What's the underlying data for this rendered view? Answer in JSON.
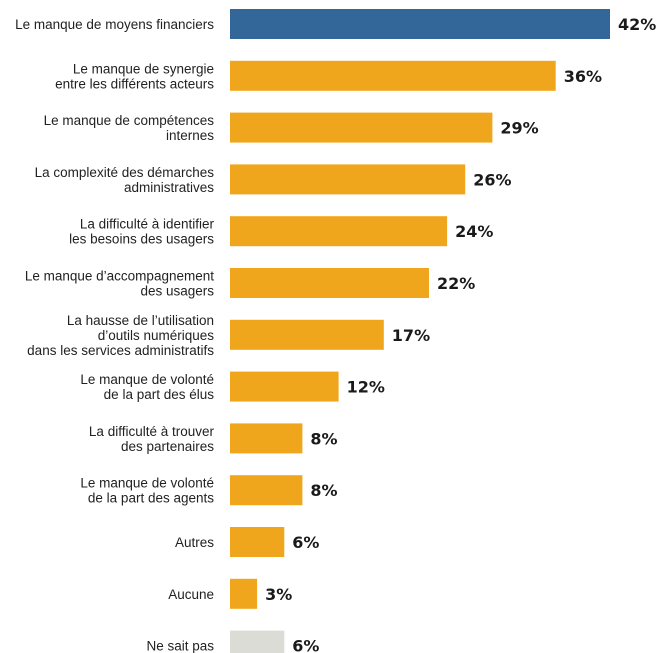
{
  "chart_data": {
    "type": "bar",
    "orientation": "horizontal",
    "title": "",
    "xlabel": "",
    "ylabel": "",
    "categories": [
      [
        "Le manque de moyens financiers"
      ],
      [
        "Le manque de synergie",
        "entre les différents acteurs"
      ],
      [
        "Le manque de compétences",
        "internes"
      ],
      [
        "La complexité des démarches",
        "administratives"
      ],
      [
        "La difficulté à identifier",
        "les besoins des usagers"
      ],
      [
        "Le manque d’accompagnement",
        "des usagers"
      ],
      [
        "La hausse de l’utilisation",
        "d’outils numériques",
        "dans les services administratifs"
      ],
      [
        "Le manque de volonté",
        "de la part des élus"
      ],
      [
        "La difficulté à trouver",
        "des partenaires"
      ],
      [
        "Le manque de volonté",
        "de la part des agents"
      ],
      [
        "Autres"
      ],
      [
        "Aucune"
      ],
      [
        "Ne sait pas"
      ]
    ],
    "values": [
      42,
      36,
      29,
      26,
      24,
      22,
      17,
      12,
      8,
      8,
      6,
      3,
      6
    ],
    "value_labels": [
      "42%",
      "36%",
      "29%",
      "26%",
      "24%",
      "22%",
      "17%",
      "12%",
      "8%",
      "8%",
      "6%",
      "3%",
      "6%"
    ],
    "bar_colors": [
      "#336699",
      "#f0a61c",
      "#f0a61c",
      "#f0a61c",
      "#f0a61c",
      "#f0a61c",
      "#f0a61c",
      "#f0a61c",
      "#f0a61c",
      "#f0a61c",
      "#f0a61c",
      "#f0a61c",
      "#dcdcd6"
    ],
    "xlim": [
      0,
      42
    ],
    "grid": false,
    "legend": "none"
  }
}
